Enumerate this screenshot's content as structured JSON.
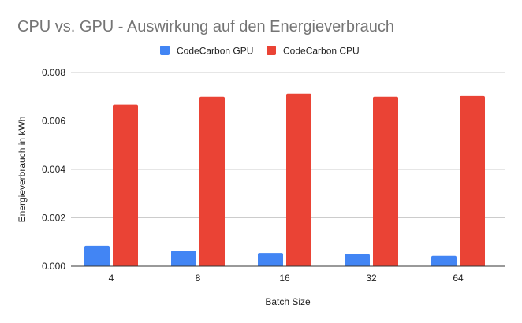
{
  "chart_data": {
    "type": "bar",
    "title": "CPU vs. GPU - Auswirkung auf den Energieverbrauch",
    "xlabel": "Batch Size",
    "ylabel": "Energieverbrauch in kWh",
    "categories": [
      "4",
      "8",
      "16",
      "32",
      "64"
    ],
    "series": [
      {
        "name": "CodeCarbon GPU",
        "color": "#4285f4",
        "values": [
          0.00085,
          0.00065,
          0.00055,
          0.0005,
          0.00043
        ]
      },
      {
        "name": "CodeCarbon CPU",
        "color": "#ea4335",
        "values": [
          0.00668,
          0.007,
          0.00713,
          0.007,
          0.00703
        ]
      }
    ],
    "ylim": [
      0,
      0.008
    ],
    "yticks": [
      "0.000",
      "0.002",
      "0.004",
      "0.006",
      "0.008"
    ],
    "grid": true,
    "legend_position": "top-center"
  }
}
